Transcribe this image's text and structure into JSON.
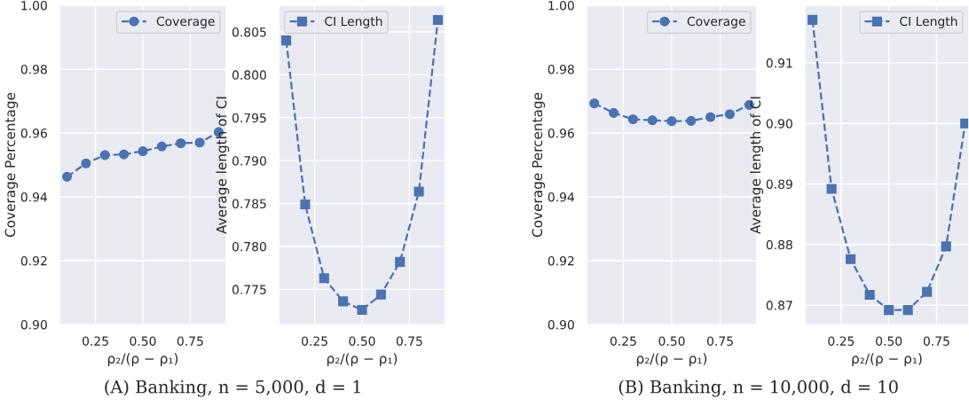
{
  "chart_data": [
    {
      "type": "line",
      "x": [
        0.1,
        0.2,
        0.3,
        0.4,
        0.5,
        0.6,
        0.7,
        0.8,
        0.9
      ],
      "xlabel": "ρ₂/(ρ − ρ₁)",
      "ylabel": "Coverage Percentage",
      "xlim": [
        0.06,
        0.94
      ],
      "xticks": [
        {
          "value": 0.25,
          "label": "0.25"
        },
        {
          "value": 0.5,
          "label": "0.50"
        },
        {
          "value": 0.75,
          "label": "0.75"
        }
      ],
      "ylim": [
        0.9,
        1.0
      ],
      "yticks": [
        {
          "value": 0.9,
          "label": "0.90"
        },
        {
          "value": 0.92,
          "label": "0.92"
        },
        {
          "value": 0.94,
          "label": "0.94"
        },
        {
          "value": 0.96,
          "label": "0.96"
        },
        {
          "value": 0.98,
          "label": "0.98"
        },
        {
          "value": 1.0,
          "label": "1.00"
        }
      ],
      "grid": true,
      "legend": "top right",
      "marker": "circle",
      "line_style": "dashed",
      "series": [
        {
          "name": "Coverage",
          "color": "#4c72b0",
          "values": [
            0.9463,
            0.9505,
            0.9531,
            0.9533,
            0.9543,
            0.9558,
            0.9568,
            0.957,
            0.9603
          ]
        }
      ],
      "annotations": [
        "(A) Banking, n = 5,000, d = 1"
      ]
    },
    {
      "type": "line",
      "x": [
        0.1,
        0.2,
        0.3,
        0.4,
        0.5,
        0.6,
        0.7,
        0.8,
        0.9
      ],
      "xlabel": "ρ₂/(ρ − ρ₁)",
      "ylabel": "Average length of CI",
      "xlim": [
        0.06,
        0.94
      ],
      "xticks": [
        {
          "value": 0.25,
          "label": "0.25"
        },
        {
          "value": 0.5,
          "label": "0.50"
        },
        {
          "value": 0.75,
          "label": "0.75"
        }
      ],
      "ylim": [
        0.7709,
        0.8081
      ],
      "yticks": [
        {
          "value": 0.775,
          "label": "0.775"
        },
        {
          "value": 0.78,
          "label": "0.780"
        },
        {
          "value": 0.785,
          "label": "0.785"
        },
        {
          "value": 0.79,
          "label": "0.790"
        },
        {
          "value": 0.795,
          "label": "0.795"
        },
        {
          "value": 0.8,
          "label": "0.800"
        },
        {
          "value": 0.805,
          "label": "0.805"
        }
      ],
      "grid": true,
      "legend": "top left",
      "marker": "square",
      "line_style": "dashed",
      "series": [
        {
          "name": "CI Length",
          "color": "#4c72b0",
          "values": [
            0.804,
            0.7849,
            0.7763,
            0.7736,
            0.7726,
            0.7744,
            0.7782,
            0.7864,
            0.8064
          ]
        }
      ]
    },
    {
      "type": "line",
      "x": [
        0.1,
        0.2,
        0.3,
        0.4,
        0.5,
        0.6,
        0.7,
        0.8,
        0.9
      ],
      "xlabel": "ρ₂/(ρ − ρ₁)",
      "ylabel": "Coverage Percentage",
      "xlim": [
        0.06,
        0.94
      ],
      "xticks": [
        {
          "value": 0.25,
          "label": "0.25"
        },
        {
          "value": 0.5,
          "label": "0.50"
        },
        {
          "value": 0.75,
          "label": "0.75"
        }
      ],
      "ylim": [
        0.9,
        1.0
      ],
      "yticks": [
        {
          "value": 0.9,
          "label": "0.90"
        },
        {
          "value": 0.92,
          "label": "0.92"
        },
        {
          "value": 0.94,
          "label": "0.94"
        },
        {
          "value": 0.96,
          "label": "0.96"
        },
        {
          "value": 0.98,
          "label": "0.98"
        },
        {
          "value": 1.0,
          "label": "1.00"
        }
      ],
      "grid": true,
      "legend": "top right",
      "marker": "circle",
      "line_style": "dashed",
      "series": [
        {
          "name": "Coverage",
          "color": "#4c72b0",
          "values": [
            0.9693,
            0.9663,
            0.9643,
            0.964,
            0.9637,
            0.9638,
            0.965,
            0.9659,
            0.9688
          ]
        }
      ],
      "annotations": [
        "(B) Banking, n = 10,000, d = 10"
      ]
    },
    {
      "type": "line",
      "x": [
        0.1,
        0.2,
        0.3,
        0.4,
        0.5,
        0.6,
        0.7,
        0.8,
        0.9
      ],
      "xlabel": "ρ₂/(ρ − ρ₁)",
      "ylabel": "Average length of CI",
      "xlim": [
        0.06,
        0.92
      ],
      "xticks": [
        {
          "value": 0.25,
          "label": "0.25"
        },
        {
          "value": 0.5,
          "label": "0.50"
        },
        {
          "value": 0.75,
          "label": "0.75"
        }
      ],
      "ylim": [
        0.8668,
        0.9195
      ],
      "yticks": [
        {
          "value": 0.87,
          "label": "0.87"
        },
        {
          "value": 0.88,
          "label": "0.88"
        },
        {
          "value": 0.89,
          "label": "0.89"
        },
        {
          "value": 0.9,
          "label": "0.90"
        },
        {
          "value": 0.91,
          "label": "0.91"
        }
      ],
      "grid": true,
      "legend": "top right",
      "marker": "square",
      "line_style": "dashed",
      "series": [
        {
          "name": "CI Length",
          "color": "#4c72b0",
          "values": [
            0.9171,
            0.8892,
            0.8776,
            0.8717,
            0.8692,
            0.8692,
            0.8722,
            0.8797,
            0.9
          ]
        }
      ]
    }
  ]
}
